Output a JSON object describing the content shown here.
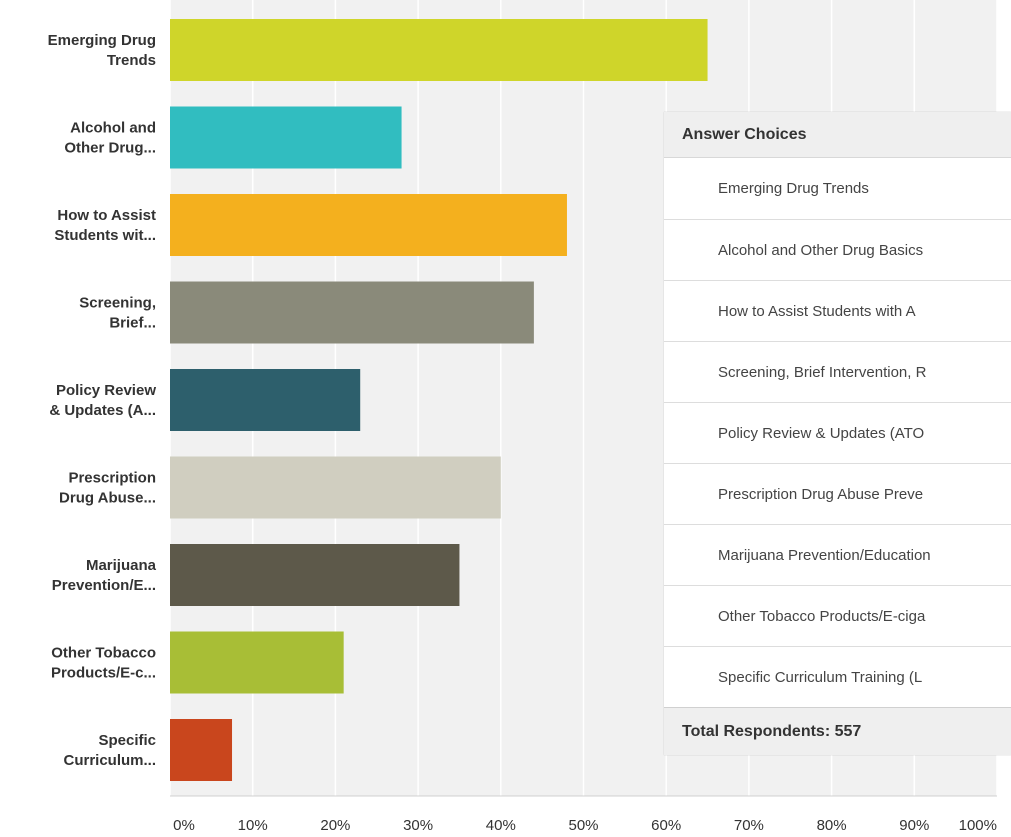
{
  "chart_data": {
    "type": "bar",
    "orientation": "horizontal",
    "categories": [
      "Emerging Drug Trends",
      "Alcohol and Other Drug...",
      "How to Assist Students wit...",
      "Screening, Brief...",
      "Policy Review & Updates (A...",
      "Prescription Drug Abuse...",
      "Marijuana Prevention/E...",
      "Other Tobacco Products/E-c...",
      "Specific Curriculum..."
    ],
    "category_lines": [
      [
        "Emerging Drug",
        "Trends"
      ],
      [
        "Alcohol and",
        "Other Drug..."
      ],
      [
        "How to Assist",
        "Students wit..."
      ],
      [
        "Screening,",
        "Brief..."
      ],
      [
        "Policy Review",
        "& Updates (A..."
      ],
      [
        "Prescription",
        "Drug Abuse..."
      ],
      [
        "Marijuana",
        "Prevention/E..."
      ],
      [
        "Other Tobacco",
        "Products/E-c..."
      ],
      [
        "Specific",
        "Curriculum..."
      ]
    ],
    "values": [
      65,
      28,
      48,
      44,
      23,
      40,
      35,
      21,
      7.5
    ],
    "colors": [
      "#cfd52a",
      "#31bdc0",
      "#f4b01e",
      "#8a8a7a",
      "#2d5f6c",
      "#d0cec0",
      "#5d594a",
      "#a8be36",
      "#c9461d"
    ],
    "xlim": [
      0,
      100
    ],
    "x_ticks": [
      "0%",
      "10%",
      "20%",
      "30%",
      "40%",
      "50%",
      "60%",
      "70%",
      "80%",
      "90%",
      "100%"
    ],
    "grid": true,
    "background": "#f1f1f1"
  },
  "answer_table": {
    "header": "Answer Choices",
    "rows": [
      "Emerging Drug Trends",
      "Alcohol and Other Drug Basics",
      "How to Assist Students with A",
      "Screening, Brief Intervention, R",
      "Policy Review & Updates (ATO",
      "Prescription Drug Abuse Preve",
      "Marijuana Prevention/Education",
      "Other Tobacco Products/E-ciga",
      "Specific Curriculum Training (L"
    ],
    "footer": "Total Respondents: 557"
  }
}
